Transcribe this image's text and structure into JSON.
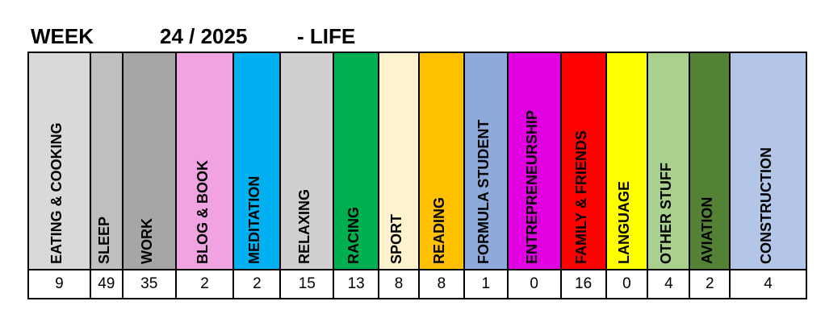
{
  "title": {
    "week_label": "WEEK",
    "week_number": "24 / 2025",
    "category": "- LIFE"
  },
  "categories": [
    {
      "label": "EATING & COOKING",
      "value": "9",
      "color": "#d9d9d9"
    },
    {
      "label": "SLEEP",
      "value": "49",
      "color": "#bfbfbf"
    },
    {
      "label": "WORK",
      "value": "35",
      "color": "#a6a6a6"
    },
    {
      "label": "BLOG & BOOK",
      "value": "2",
      "color": "#f0a3e0"
    },
    {
      "label": "MEDITATION",
      "value": "2",
      "color": "#00b0f0"
    },
    {
      "label": "RELAXING",
      "value": "15",
      "color": "#d0cece"
    },
    {
      "label": "RACING",
      "value": "13",
      "color": "#00b050"
    },
    {
      "label": "SPORT",
      "value": "8",
      "color": "#fff2cc"
    },
    {
      "label": "READING",
      "value": "8",
      "color": "#ffc000"
    },
    {
      "label": "FORMULA STUDENT",
      "value": "1",
      "color": "#8eaadb"
    },
    {
      "label": "ENTREPRENEURSHIP",
      "value": "0",
      "color": "#e000e0"
    },
    {
      "label": "FAMILY & FRIENDS",
      "value": "16",
      "color": "#ff0000"
    },
    {
      "label": "LANGUAGE",
      "value": "0",
      "color": "#ffff00"
    },
    {
      "label": "OTHER STUFF",
      "value": "4",
      "color": "#a9d08e"
    },
    {
      "label": "AVIATION",
      "value": "2",
      "color": "#548235"
    },
    {
      "label": "CONSTRUCTION",
      "value": "4",
      "color": "#b4c6e7"
    }
  ]
}
